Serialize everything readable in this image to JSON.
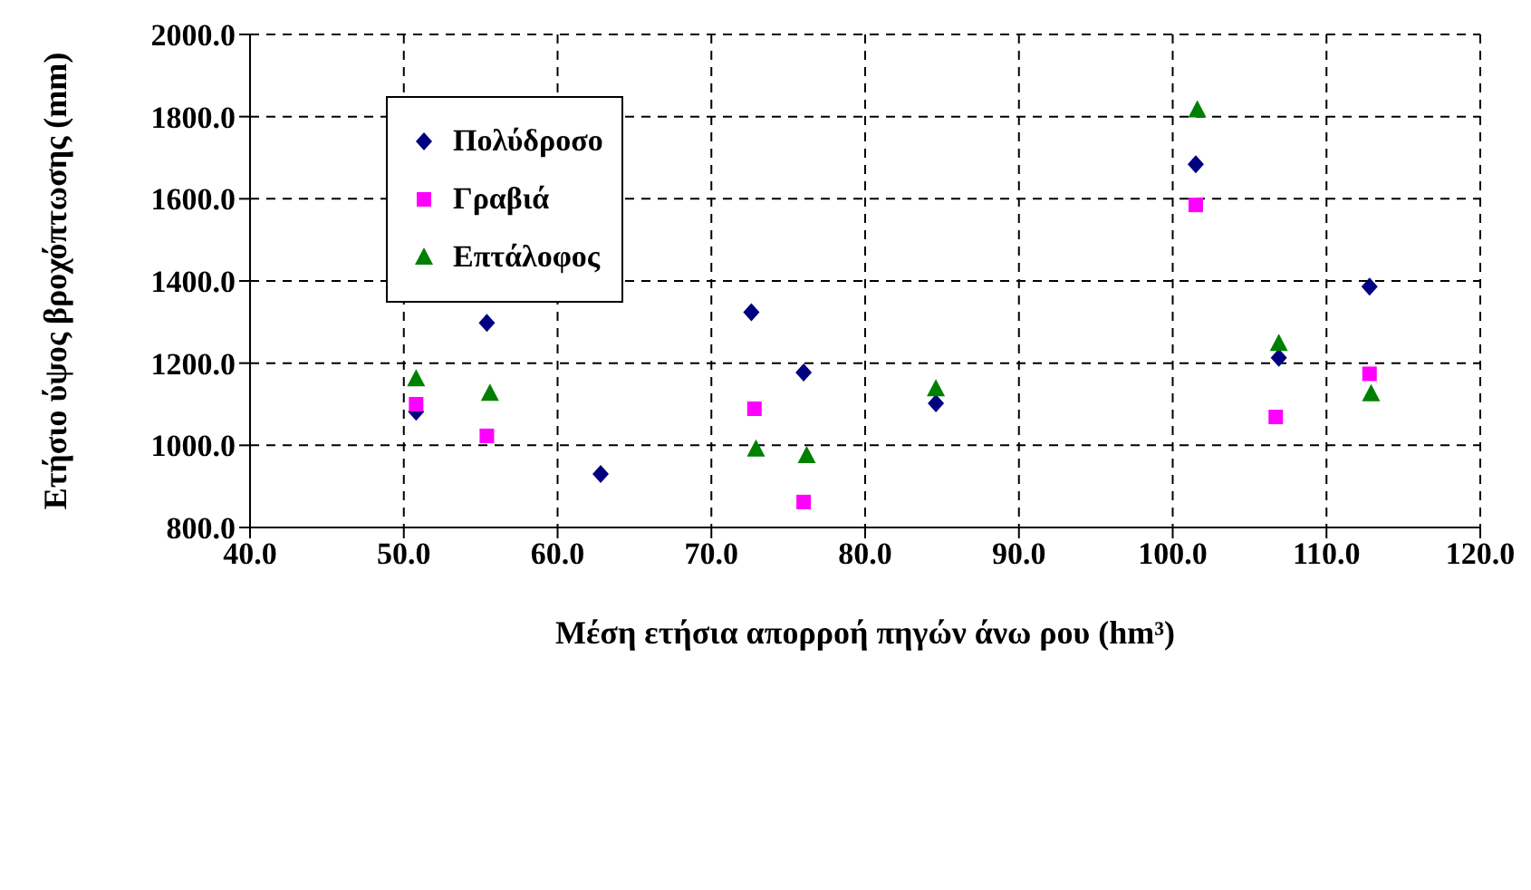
{
  "chart_data": {
    "type": "scatter",
    "xlabel": "Μέση ετήσια απορροή πηγών άνω ρου (hm³)",
    "ylabel": "Ετήσιο ύψος βροχόπτωσης (mm)",
    "xlim": [
      40,
      120
    ],
    "ylim": [
      800,
      2000
    ],
    "xticks": [
      {
        "value": 40,
        "label": "40.0"
      },
      {
        "value": 50,
        "label": "50.0"
      },
      {
        "value": 60,
        "label": "60.0"
      },
      {
        "value": 70,
        "label": "70.0"
      },
      {
        "value": 80,
        "label": "80.0"
      },
      {
        "value": 90,
        "label": "90.0"
      },
      {
        "value": 100,
        "label": "100.0"
      },
      {
        "value": 110,
        "label": "110.0"
      },
      {
        "value": 120,
        "label": "120.0"
      }
    ],
    "yticks": [
      {
        "value": 800,
        "label": "800.0"
      },
      {
        "value": 1000,
        "label": "1000.0"
      },
      {
        "value": 1200,
        "label": "1200.0"
      },
      {
        "value": 1400,
        "label": "1400.0"
      },
      {
        "value": 1600,
        "label": "1600.0"
      },
      {
        "value": 1800,
        "label": "1800.0"
      },
      {
        "value": 2000,
        "label": "2000.0"
      }
    ],
    "grid": true,
    "legend": "top left",
    "series": [
      {
        "name": "Πολύδροσο",
        "color": "#000080",
        "marker": "diamond",
        "x": [
          50.8,
          55.4,
          62.8,
          72.6,
          76,
          84.6,
          101.5,
          106.9,
          112.8
        ],
        "values": [
          1082,
          1298,
          930,
          1324,
          1177,
          1102,
          1684,
          1213,
          1386
        ]
      },
      {
        "name": "Γραβιά",
        "color": "#ff00ff",
        "marker": "square",
        "x": [
          50.8,
          55.4,
          72.8,
          76,
          101.5,
          106.7,
          112.8
        ],
        "values": [
          1100,
          1023,
          1089,
          862,
          1585,
          1069,
          1174
        ]
      },
      {
        "name": "Επτάλοφος",
        "color": "#008000",
        "marker": "triangle",
        "x": [
          50.8,
          55.6,
          72.9,
          76.2,
          84.6,
          101.6,
          106.9,
          112.9
        ],
        "values": [
          1161,
          1126,
          990,
          974,
          1137,
          1816,
          1247,
          1125
        ]
      }
    ]
  }
}
